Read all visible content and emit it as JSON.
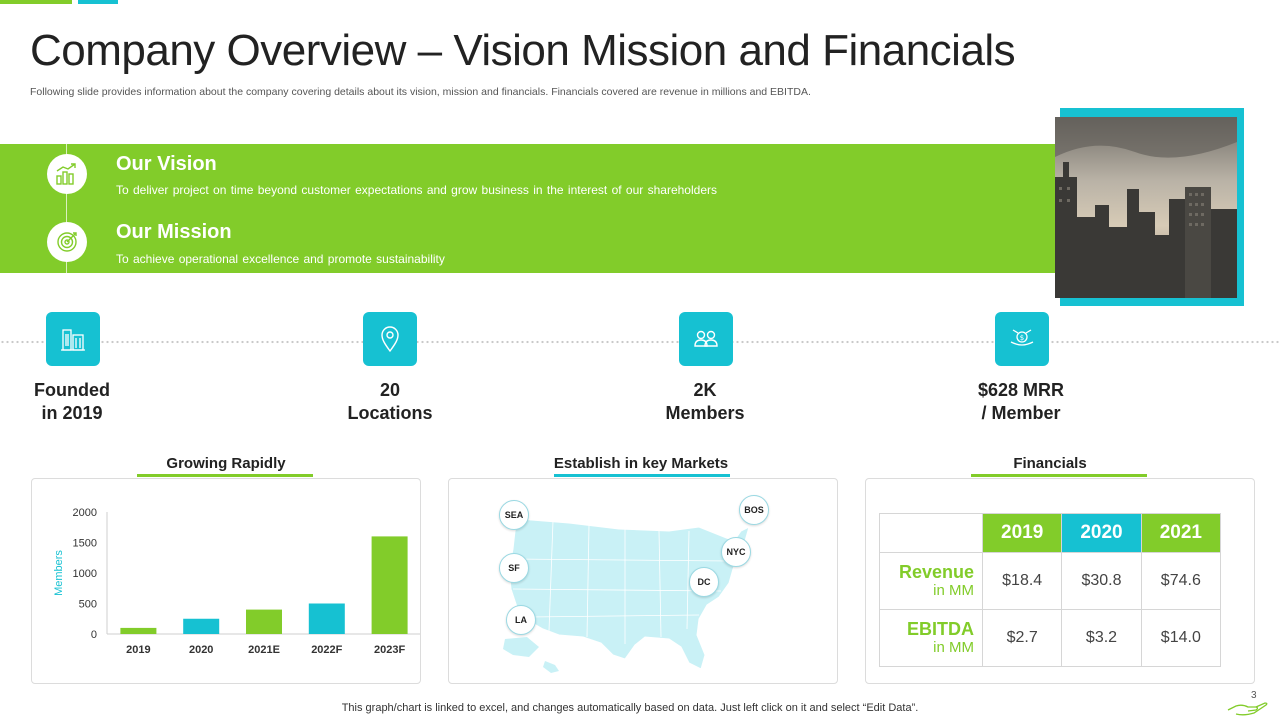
{
  "slide": {
    "title": "Company Overview – Vision Mission and Financials",
    "subtitle": "Following slide provides information about the company covering details about its vision, mission and financials. Financials covered are revenue in millions and EBITDA.",
    "page_number": "3",
    "footer_note": "This graph/chart is linked to excel, and changes automatically based on data. Just left click on it and select “Edit Data”."
  },
  "vision": {
    "heading": "Our Vision",
    "text": "To deliver project on time beyond customer expectations and grow business in the interest of our shareholders",
    "icon": "growth-chart-icon"
  },
  "mission": {
    "heading": "Our Mission",
    "text": "To achieve operational excellence and promote sustainability",
    "icon": "target-icon"
  },
  "stats": [
    {
      "line1": "Founded",
      "line2": "in 2019",
      "icon": "building-icon"
    },
    {
      "line1": "20",
      "line2": "Locations",
      "icon": "location-pin-icon"
    },
    {
      "line1": "2K",
      "line2": "Members",
      "icon": "people-icon"
    },
    {
      "line1": "$628 MRR",
      "line2": "/ Member",
      "icon": "money-hand-icon"
    }
  ],
  "panels": {
    "growth_title": "Growing Rapidly",
    "markets_title": "Establish in key Markets",
    "financials_title": "Financials"
  },
  "markets": {
    "pins": [
      "SEA",
      "SF",
      "LA",
      "DC",
      "NYC",
      "BOS"
    ]
  },
  "financials": {
    "years": [
      "2019",
      "2020",
      "2021"
    ],
    "rows": [
      {
        "label": "Revenue",
        "sublabel": "in MM",
        "values": [
          "$18.4",
          "$30.8",
          "$74.6"
        ]
      },
      {
        "label": "EBITDA",
        "sublabel": "in MM",
        "values": [
          "$2.7",
          "$3.2",
          "$14.0"
        ]
      }
    ]
  },
  "colors": {
    "green": "#82cc2a",
    "cyan": "#16c1d2"
  },
  "chart_data": {
    "type": "bar",
    "title": "Growing Rapidly",
    "categories": [
      "2019",
      "2020",
      "2021E",
      "2022F",
      "2023F"
    ],
    "values": [
      100,
      250,
      400,
      500,
      1600
    ],
    "bar_colors": [
      "#82cc2a",
      "#16c1d2",
      "#82cc2a",
      "#16c1d2",
      "#82cc2a"
    ],
    "ylabel": "Members",
    "xlabel": "",
    "ylim": [
      0,
      2000
    ],
    "yticks": [
      "2000",
      "1500",
      "1000",
      "500",
      "0"
    ],
    "grid": false
  }
}
